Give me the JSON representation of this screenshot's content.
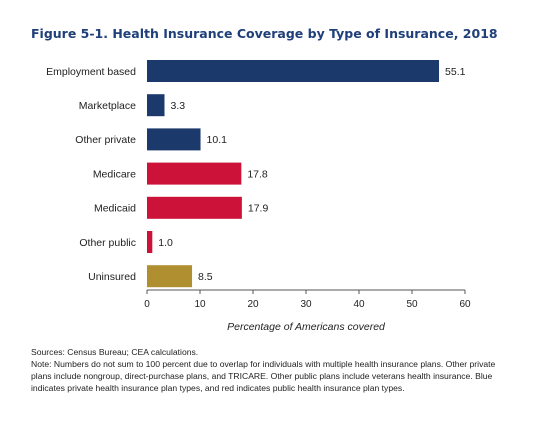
{
  "chart_data": {
    "type": "bar",
    "orientation": "horizontal",
    "title": "Figure 5-1. Health Insurance Coverage by Type of Insurance, 2018",
    "xlabel": "Percentage of Americans covered",
    "ylabel": "",
    "xlim": [
      0,
      60
    ],
    "xticks": [
      0,
      10,
      20,
      30,
      40,
      50,
      60
    ],
    "grid": false,
    "categories": [
      "Employment based",
      "Marketplace",
      "Other private",
      "Medicare",
      "Medicaid",
      "Other public",
      "Uninsured"
    ],
    "values": [
      55.1,
      3.3,
      10.1,
      17.8,
      17.9,
      1.0,
      8.5
    ],
    "value_labels": [
      "55.1",
      "3.3",
      "10.1",
      "17.8",
      "17.9",
      "1.0",
      "8.5"
    ],
    "bar_colors": [
      "#1b3a6b",
      "#1b3a6b",
      "#1b3a6b",
      "#cc1238",
      "#cc1238",
      "#cc1238",
      "#b08f30"
    ]
  },
  "footnotes": {
    "sources": "Sources: Census Bureau; CEA calculations.",
    "note": "Note: Numbers do not sum to 100 percent due to overlap for individuals with multiple health insurance plans. Other private plans include nongroup, direct-purchase plans, and TRICARE. Other public plans include veterans health insurance. Blue indicates private health insurance plan types, and red indicates public health insurance plan types."
  }
}
